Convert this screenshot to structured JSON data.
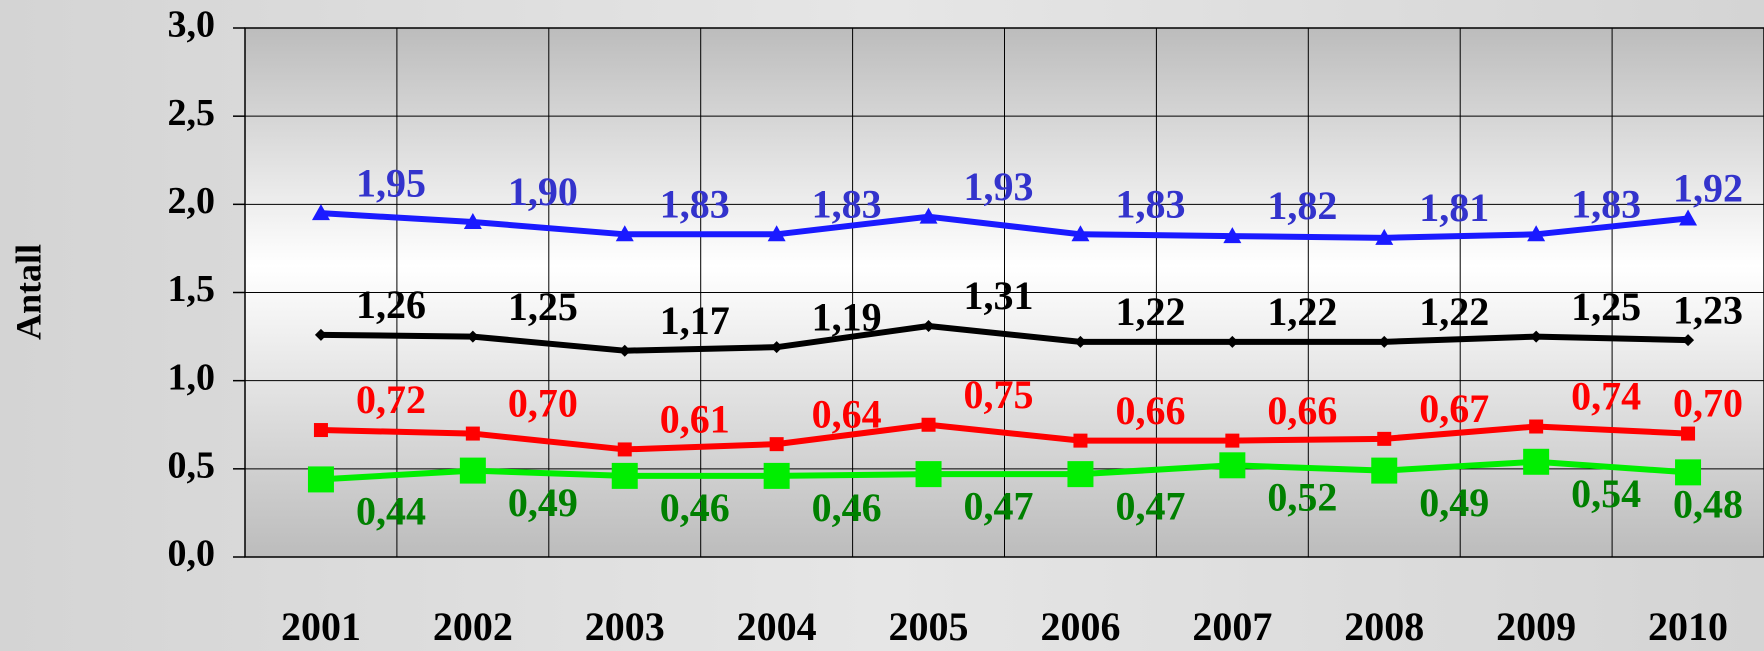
{
  "chart_data": {
    "type": "line",
    "y_label": "Antall",
    "categories": [
      "2001",
      "2002",
      "2003",
      "2004",
      "2005",
      "2006",
      "2007",
      "2008",
      "2009",
      "2010"
    ],
    "ylim": [
      0,
      3
    ],
    "yticks": [
      {
        "value": 0,
        "label": "0,0"
      },
      {
        "value": 0.5,
        "label": "0,5"
      },
      {
        "value": 1,
        "label": "1,0"
      },
      {
        "value": 1.5,
        "label": "1,5"
      },
      {
        "value": 2,
        "label": "2,0"
      },
      {
        "value": 2.5,
        "label": "2,5"
      },
      {
        "value": 3,
        "label": "3,0"
      }
    ],
    "grid": true,
    "series": [
      {
        "color": "#1a1aff",
        "label_color": "#3333cc",
        "marker": "triangle",
        "label_position": "above",
        "values": [
          1.95,
          1.9,
          1.83,
          1.83,
          1.93,
          1.83,
          1.82,
          1.81,
          1.83,
          1.92
        ],
        "value_labels": [
          "1,95",
          "1,90",
          "1,83",
          "1,83",
          "1,93",
          "1,83",
          "1,82",
          "1,81",
          "1,83",
          "1,92"
        ]
      },
      {
        "color": "#000000",
        "label_color": "#000000",
        "marker": "diamond",
        "label_position": "above",
        "values": [
          1.26,
          1.25,
          1.17,
          1.19,
          1.31,
          1.22,
          1.22,
          1.22,
          1.25,
          1.23
        ],
        "value_labels": [
          "1,26",
          "1,25",
          "1,17",
          "1,19",
          "1,31",
          "1,22",
          "1,22",
          "1,22",
          "1,25",
          "1,23"
        ]
      },
      {
        "color": "#ff0000",
        "label_color": "#ff0000",
        "marker": "square",
        "label_position": "above",
        "values": [
          0.72,
          0.7,
          0.61,
          0.64,
          0.75,
          0.66,
          0.66,
          0.67,
          0.74,
          0.7
        ],
        "value_labels": [
          "0,72",
          "0,70",
          "0,61",
          "0,64",
          "0,75",
          "0,66",
          "0,66",
          "0,67",
          "0,74",
          "0,70"
        ]
      },
      {
        "color": "#00ee00",
        "label_color": "#008000",
        "marker": "bigsquare",
        "label_position": "below",
        "values": [
          0.44,
          0.49,
          0.46,
          0.46,
          0.47,
          0.47,
          0.52,
          0.49,
          0.54,
          0.48
        ],
        "value_labels": [
          "0,44",
          "0,49",
          "0,46",
          "0,46",
          "0,47",
          "0,47",
          "0,52",
          "0,49",
          "0,54",
          "0,48"
        ]
      }
    ]
  }
}
